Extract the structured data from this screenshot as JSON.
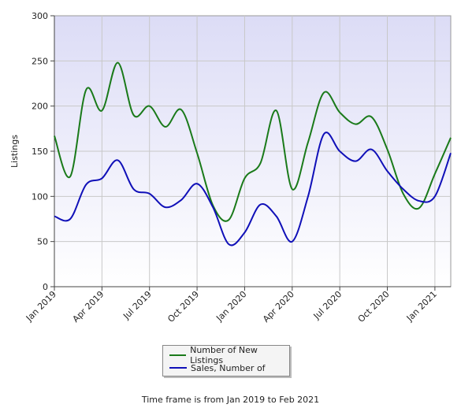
{
  "chart_data": {
    "type": "line",
    "ylabel": "Listings",
    "ylim": [
      0,
      300
    ],
    "yticks": [
      0,
      50,
      100,
      150,
      200,
      250,
      300
    ],
    "xlim": [
      "2019-01",
      "2021-02"
    ],
    "xticks": [
      "Jan 2019",
      "Apr 2019",
      "Jul 2019",
      "Oct 2019",
      "Jan 2020",
      "Apr 2020",
      "Jul 2020",
      "Oct 2020",
      "Jan 2021"
    ],
    "x": [
      "2019-01",
      "2019-02",
      "2019-03",
      "2019-04",
      "2019-05",
      "2019-06",
      "2019-07",
      "2019-08",
      "2019-09",
      "2019-10",
      "2019-11",
      "2019-12",
      "2020-01",
      "2020-02",
      "2020-03",
      "2020-04",
      "2020-05",
      "2020-06",
      "2020-07",
      "2020-08",
      "2020-09",
      "2020-10",
      "2020-11",
      "2020-12",
      "2021-01",
      "2021-02"
    ],
    "series": [
      {
        "name": "Number of New Listings",
        "color": "#1a7a1a",
        "values": [
          167,
          122,
          218,
          195,
          248,
          190,
          200,
          177,
          196,
          148,
          90,
          74,
          120,
          137,
          195,
          108,
          160,
          215,
          193,
          180,
          188,
          152,
          103,
          87,
          125,
          165
        ]
      },
      {
        "name": "Sales, Number of",
        "color": "#1010b8",
        "values": [
          78,
          75,
          113,
          120,
          140,
          108,
          103,
          88,
          96,
          114,
          88,
          47,
          60,
          91,
          78,
          50,
          100,
          169,
          150,
          139,
          152,
          128,
          108,
          95,
          100,
          148
        ]
      }
    ],
    "legend_position": "bottom",
    "grid": true,
    "caption": "Time frame is from Jan 2019 to Feb 2021"
  }
}
